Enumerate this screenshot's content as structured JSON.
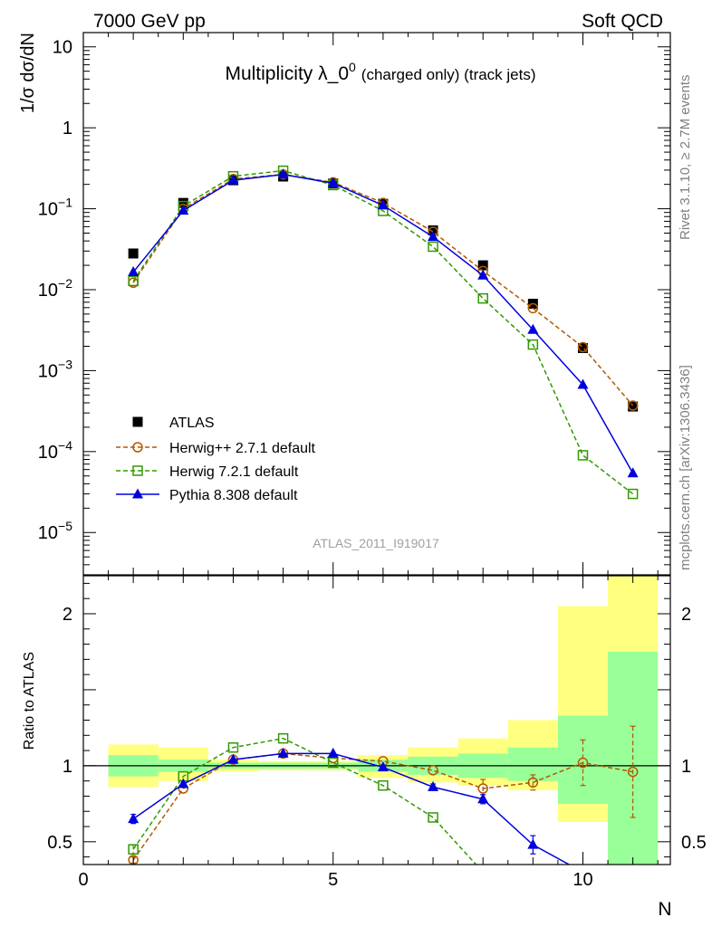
{
  "header": {
    "left": "7000 GeV pp",
    "right": "Soft QCD"
  },
  "side_text": {
    "rivet": "Rivet 3.1.10, ≥ 2.7M events",
    "mcplots": "mcplots.cern.ch [arXiv:1306.3436]"
  },
  "chart_data": {
    "type": "scatter",
    "title_main": "Multiplicity λ_0",
    "title_sup": "0",
    "title_suffix": "(charged only) (track jets)",
    "analysis_label": "ATLAS_2011_I919017",
    "xlabel": "N",
    "ylabel_top": "1/σ dσ/dN",
    "ylabel_bottom": "Ratio to ATLAS",
    "xlim": [
      0,
      11.75
    ],
    "ylim_top": [
      3e-06,
      15
    ],
    "ylim_bottom": [
      0.35,
      2.25
    ],
    "log_y_top": true,
    "x_ticks": [
      "0",
      "5",
      "10"
    ],
    "y_ticks_top": [
      {
        "base": "10",
        "exp": ""
      },
      {
        "base": "1",
        "exp": ""
      },
      {
        "base": "10",
        "exp": "−1"
      },
      {
        "base": "10",
        "exp": "−2"
      },
      {
        "base": "10",
        "exp": "−3"
      },
      {
        "base": "10",
        "exp": "−4"
      },
      {
        "base": "10",
        "exp": "−5"
      }
    ],
    "y_ticks_bottom": [
      "0.5",
      "1",
      "2"
    ],
    "legend_placement": "lower-left",
    "x": [
      1,
      2,
      3,
      4,
      5,
      6,
      7,
      8,
      9,
      10,
      11
    ],
    "band_inner": [
      [
        0.93,
        1.07
      ],
      [
        0.96,
        1.04
      ],
      [
        0.98,
        1.02
      ],
      [
        0.98,
        1.02
      ],
      [
        0.98,
        1.02
      ],
      [
        0.96,
        1.04
      ],
      [
        0.94,
        1.06
      ],
      [
        0.92,
        1.08
      ],
      [
        0.9,
        1.12
      ],
      [
        0.75,
        1.33
      ],
      [
        0.3,
        1.75
      ]
    ],
    "band_outer": [
      [
        0.86,
        1.14
      ],
      [
        0.9,
        1.12
      ],
      [
        0.96,
        1.04
      ],
      [
        0.97,
        1.03
      ],
      [
        0.97,
        1.03
      ],
      [
        0.92,
        1.07
      ],
      [
        0.89,
        1.12
      ],
      [
        0.87,
        1.18
      ],
      [
        0.84,
        1.3
      ],
      [
        0.63,
        2.05
      ],
      [
        0.3,
        2.25
      ]
    ],
    "series": [
      {
        "name": "ATLAS",
        "color": "#000000",
        "marker": "square",
        "line": "none",
        "values": [
          0.028,
          0.118,
          0.225,
          0.25,
          0.205,
          0.115,
          0.054,
          0.02,
          0.0067,
          0.0019,
          0.00036
        ]
      },
      {
        "name": "Herwig++ 2.7.1 default",
        "color": "#b35900",
        "marker": "circle-open",
        "line": "dashed",
        "values": [
          0.0122,
          0.1,
          0.233,
          0.265,
          0.212,
          0.118,
          0.052,
          0.017,
          0.0059,
          0.00195,
          0.00037
        ],
        "ratio": [
          0.38,
          0.85,
          1.04,
          1.08,
          1.05,
          1.03,
          0.97,
          0.85,
          0.89,
          1.02,
          0.96
        ],
        "ratio_err": [
          0.02,
          0.0,
          0.0,
          0.0,
          0.0,
          0.0,
          0.0,
          0.06,
          0.05,
          0.15,
          0.3
        ]
      },
      {
        "name": "Herwig 7.2.1 default",
        "color": "#339900",
        "marker": "square-open",
        "line": "dashed",
        "values": [
          0.0128,
          0.108,
          0.252,
          0.295,
          0.196,
          0.094,
          0.034,
          0.0078,
          0.0021,
          9e-05,
          3e-05
        ],
        "ratio": [
          0.45,
          0.93,
          1.12,
          1.18,
          1.02,
          0.87,
          0.66,
          0.3,
          0.3,
          0.3,
          0.3
        ],
        "ratio_err": [
          0.03,
          0.0,
          0.0,
          0.0,
          0.0,
          0.0,
          0.0,
          0.0,
          0.0,
          0.0,
          0.0
        ]
      },
      {
        "name": "Pythia 8.308 default",
        "color": "#0000dd",
        "marker": "triangle",
        "line": "solid",
        "values": [
          0.0165,
          0.095,
          0.225,
          0.265,
          0.207,
          0.11,
          0.045,
          0.015,
          0.0032,
          0.00067,
          5.4e-05
        ],
        "ratio": [
          0.65,
          0.88,
          1.04,
          1.08,
          1.08,
          0.99,
          0.86,
          0.78,
          0.48,
          0.3,
          0.3
        ],
        "ratio_err": [
          0.03,
          0.0,
          0.0,
          0.0,
          0.0,
          0.0,
          0.02,
          0.03,
          0.06,
          0.0,
          0.0
        ]
      }
    ]
  }
}
